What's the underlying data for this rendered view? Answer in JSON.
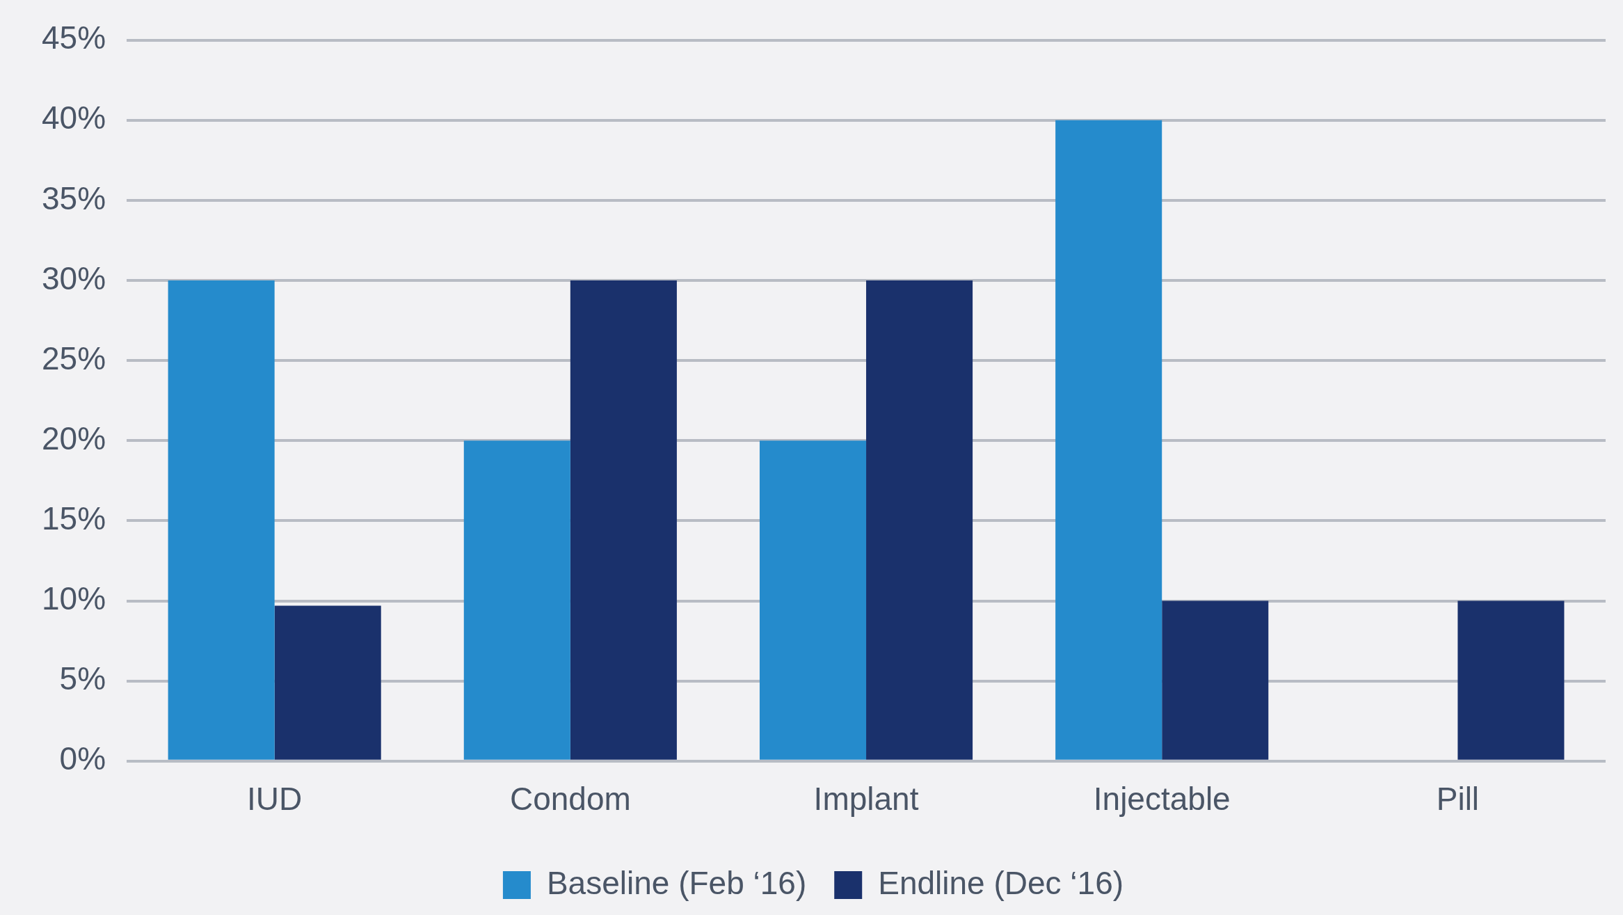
{
  "chart_data": {
    "type": "bar",
    "categories": [
      "IUD",
      "Condom",
      "Implant",
      "Injectable",
      "Pill"
    ],
    "series": [
      {
        "name": "Baseline (Feb ‘16)",
        "color": "#258bcc",
        "values": [
          30,
          20,
          20,
          40,
          0
        ]
      },
      {
        "name": "Endline (Dec ‘16)",
        "color": "#1a316c",
        "values": [
          9.7,
          30,
          30,
          10,
          10
        ]
      }
    ],
    "ylim": [
      0,
      45
    ],
    "yticks": [
      {
        "value": 0,
        "label": "0%"
      },
      {
        "value": 5,
        "label": "5%"
      },
      {
        "value": 10,
        "label": "10%"
      },
      {
        "value": 15,
        "label": "15%"
      },
      {
        "value": 20,
        "label": "20%"
      },
      {
        "value": 25,
        "label": "25%"
      },
      {
        "value": 30,
        "label": "30%"
      },
      {
        "value": 35,
        "label": "35%"
      },
      {
        "value": 40,
        "label": "40%"
      },
      {
        "value": 45,
        "label": "45%"
      }
    ],
    "grid": "y",
    "legend": "bottom"
  }
}
